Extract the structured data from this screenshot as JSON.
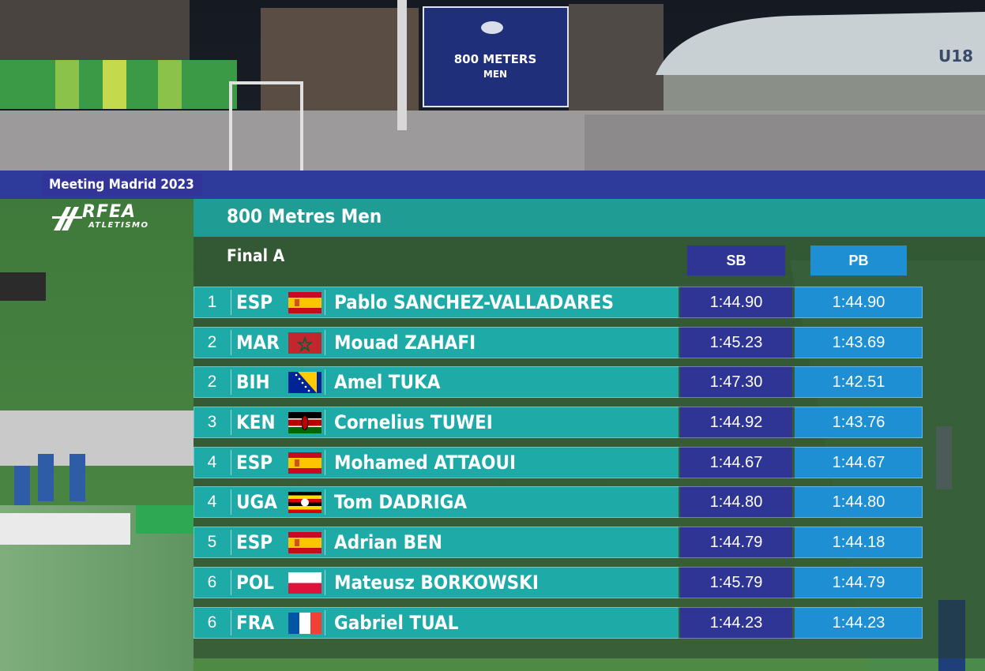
{
  "screen": {
    "line1": "800 METERS",
    "line2": "MEN"
  },
  "stand_sign": "U18",
  "event_tag": "Meeting Madrid 2023",
  "logo": {
    "main": "RFEA",
    "sub": "ATLETISMO"
  },
  "title": "800 Metres Men",
  "subtitle": "Final A",
  "columns": {
    "sb": "SB",
    "pb": "PB"
  },
  "colors": {
    "teal": "#1eaaa6",
    "sb_blue": "#2f3594",
    "pb_blue": "#1d8fd2"
  },
  "rows": [
    {
      "rank": "1",
      "nat": "ESP",
      "flag": "spain-flag",
      "name": "Pablo SANCHEZ-VALLADARES",
      "sb": "1:44.90",
      "pb": "1:44.90"
    },
    {
      "rank": "2",
      "nat": "MAR",
      "flag": "morocco-flag",
      "name": "Mouad ZAHAFI",
      "sb": "1:45.23",
      "pb": "1:43.69"
    },
    {
      "rank": "2",
      "nat": "BIH",
      "flag": "bosnia-flag",
      "name": "Amel TUKA",
      "sb": "1:47.30",
      "pb": "1:42.51"
    },
    {
      "rank": "3",
      "nat": "KEN",
      "flag": "kenya-flag",
      "name": "Cornelius TUWEI",
      "sb": "1:44.92",
      "pb": "1:43.76"
    },
    {
      "rank": "4",
      "nat": "ESP",
      "flag": "spain-flag",
      "name": "Mohamed ATTAOUI",
      "sb": "1:44.67",
      "pb": "1:44.67"
    },
    {
      "rank": "4",
      "nat": "UGA",
      "flag": "uganda-flag",
      "name": "Tom DADRIGA",
      "sb": "1:44.80",
      "pb": "1:44.80"
    },
    {
      "rank": "5",
      "nat": "ESP",
      "flag": "spain-flag",
      "name": "Adrian BEN",
      "sb": "1:44.79",
      "pb": "1:44.18"
    },
    {
      "rank": "6",
      "nat": "POL",
      "flag": "poland-flag",
      "name": "Mateusz BORKOWSKI",
      "sb": "1:45.79",
      "pb": "1:44.79"
    },
    {
      "rank": "6",
      "nat": "FRA",
      "flag": "france-flag",
      "name": "Gabriel TUAL",
      "sb": "1:44.23",
      "pb": "1:44.23"
    }
  ]
}
